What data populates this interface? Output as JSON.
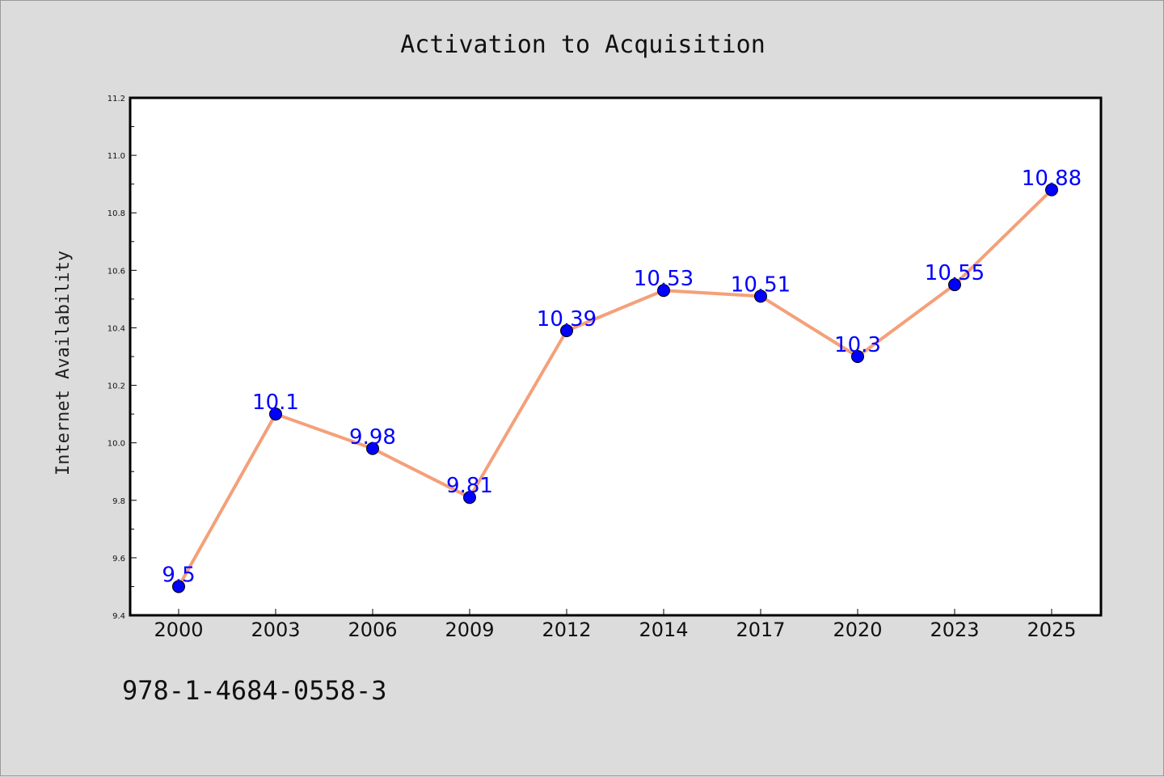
{
  "chart_data": {
    "type": "line",
    "title": "Activation to Acquisition",
    "xlabel": "",
    "ylabel": "Internet Availability",
    "categories": [
      "2000",
      "2003",
      "2006",
      "2009",
      "2012",
      "2014",
      "2017",
      "2020",
      "2023",
      "2025"
    ],
    "series": [
      {
        "values": [
          9.5,
          10.1,
          9.98,
          9.81,
          10.39,
          10.53,
          10.51,
          10.3,
          10.55,
          10.88
        ],
        "data_labels": [
          "9.5",
          "10.1",
          "9.98",
          "9.81",
          "10.39",
          "10.53",
          "10.51",
          "10.3",
          "10.55",
          "10.88"
        ],
        "line_color": "#f4a07a",
        "marker_color": "#0000ff"
      }
    ],
    "ylim": [
      9.4,
      11.2
    ],
    "yticks": [
      "9.4",
      "9.6",
      "9.8",
      "10.0",
      "10.2",
      "10.4",
      "10.6",
      "10.8",
      "11.0",
      "11.2"
    ],
    "grid": false,
    "legend": "none"
  },
  "footer": {
    "isbn": "978-1-4684-0558-3"
  }
}
